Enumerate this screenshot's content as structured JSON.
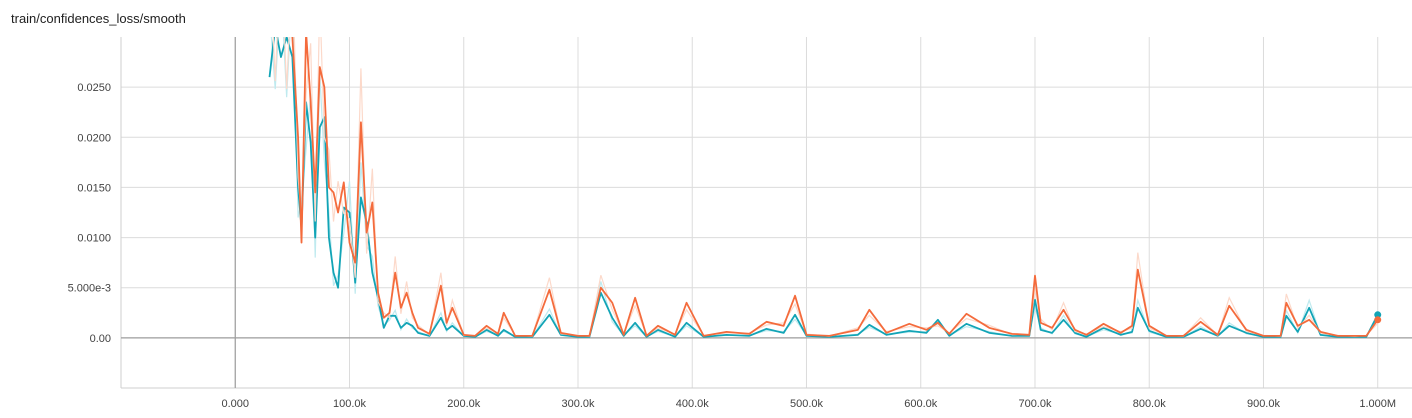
{
  "chart_data": {
    "type": "line",
    "title": "train/confidences_loss/smooth",
    "xlabel": "",
    "ylabel": "",
    "xlim": [
      -100000,
      1030000
    ],
    "ylim": [
      -0.005,
      0.03
    ],
    "x_ticks": [
      0,
      100000,
      200000,
      300000,
      400000,
      500000,
      600000,
      700000,
      800000,
      900000,
      1000000
    ],
    "x_tick_labels": [
      "0.000",
      "100.0k",
      "200.0k",
      "300.0k",
      "400.0k",
      "500.0k",
      "600.0k",
      "700.0k",
      "800.0k",
      "900.0k",
      "1.000M"
    ],
    "y_ticks": [
      0,
      0.005,
      0.01,
      0.015,
      0.02,
      0.025
    ],
    "y_tick_labels": [
      "0.00",
      "5.000e-3",
      "0.0100",
      "0.0150",
      "0.0200",
      "0.0250"
    ],
    "grid": true,
    "series": [
      {
        "color": "#12a4b6",
        "raw_color": "#bfeaef",
        "x": [
          30000,
          35000,
          40000,
          45000,
          50000,
          55000,
          58000,
          62000,
          66000,
          70000,
          74000,
          78000,
          82000,
          86000,
          90000,
          95000,
          100000,
          105000,
          110000,
          115000,
          120000,
          125000,
          130000,
          135000,
          140000,
          145000,
          150000,
          155000,
          160000,
          170000,
          180000,
          185000,
          190000,
          200000,
          210000,
          220000,
          230000,
          235000,
          245000,
          260000,
          275000,
          285000,
          300000,
          310000,
          320000,
          330000,
          340000,
          350000,
          360000,
          370000,
          385000,
          395000,
          410000,
          430000,
          450000,
          465000,
          480000,
          490000,
          500000,
          520000,
          545000,
          555000,
          570000,
          590000,
          605000,
          615000,
          625000,
          640000,
          660000,
          680000,
          695000,
          700000,
          705000,
          715000,
          725000,
          735000,
          745000,
          760000,
          775000,
          785000,
          790000,
          800000,
          815000,
          830000,
          845000,
          860000,
          870000,
          885000,
          900000,
          915000,
          920000,
          930000,
          940000,
          950000,
          965000,
          980000,
          990000,
          1000000
        ],
        "y": [
          0.026,
          0.031,
          0.028,
          0.03,
          0.028,
          0.015,
          0.011,
          0.0235,
          0.0195,
          0.01,
          0.021,
          0.022,
          0.01,
          0.0065,
          0.005,
          0.013,
          0.0125,
          0.0055,
          0.014,
          0.0115,
          0.0065,
          0.004,
          0.001,
          0.0022,
          0.0022,
          0.001,
          0.0015,
          0.0012,
          0.0005,
          0.0002,
          0.002,
          0.0008,
          0.0012,
          0.0002,
          0.0001,
          0.0008,
          0.0002,
          0.0008,
          0.0001,
          0.0001,
          0.0023,
          0.0003,
          0.0001,
          0.0001,
          0.0045,
          0.002,
          0.0002,
          0.0015,
          0.0001,
          0.0008,
          0.0001,
          0.0015,
          0.0001,
          0.0003,
          0.0002,
          0.0009,
          0.0005,
          0.0023,
          0.0002,
          0.0001,
          0.0003,
          0.0013,
          0.0003,
          0.0007,
          0.0005,
          0.0018,
          0.0002,
          0.0014,
          0.0005,
          0.0002,
          0.0002,
          0.0038,
          0.0008,
          0.0005,
          0.0018,
          0.0005,
          0.0001,
          0.001,
          0.0003,
          0.0006,
          0.003,
          0.0007,
          0.0001,
          0.0001,
          0.0009,
          0.0002,
          0.0012,
          0.0005,
          0.0001,
          0.0001,
          0.0022,
          0.0006,
          0.003,
          0.0003,
          0.0001,
          0.0001,
          0.0001,
          0.0023
        ]
      },
      {
        "color": "#f46b3c",
        "raw_color": "#fcd9ca",
        "x": [
          30000,
          35000,
          40000,
          45000,
          50000,
          55000,
          58000,
          62000,
          66000,
          70000,
          74000,
          78000,
          82000,
          86000,
          90000,
          95000,
          100000,
          105000,
          110000,
          115000,
          120000,
          125000,
          130000,
          135000,
          140000,
          145000,
          150000,
          155000,
          160000,
          170000,
          180000,
          185000,
          190000,
          200000,
          210000,
          220000,
          230000,
          235000,
          245000,
          260000,
          275000,
          285000,
          300000,
          310000,
          320000,
          330000,
          340000,
          350000,
          360000,
          370000,
          385000,
          395000,
          410000,
          430000,
          450000,
          465000,
          480000,
          490000,
          500000,
          520000,
          545000,
          555000,
          570000,
          590000,
          605000,
          615000,
          625000,
          640000,
          660000,
          680000,
          695000,
          700000,
          705000,
          715000,
          725000,
          735000,
          745000,
          760000,
          775000,
          785000,
          790000,
          800000,
          815000,
          830000,
          845000,
          860000,
          870000,
          885000,
          900000,
          915000,
          920000,
          930000,
          940000,
          950000,
          965000,
          980000,
          990000,
          1000000
        ],
        "y": [
          0.031,
          0.032,
          0.031,
          0.031,
          0.03,
          0.02,
          0.0095,
          0.0305,
          0.0235,
          0.0145,
          0.027,
          0.025,
          0.015,
          0.0145,
          0.0125,
          0.0155,
          0.0095,
          0.0075,
          0.0215,
          0.0105,
          0.0135,
          0.0045,
          0.002,
          0.0025,
          0.0065,
          0.003,
          0.0045,
          0.0025,
          0.001,
          0.0004,
          0.0052,
          0.0015,
          0.003,
          0.0003,
          0.0002,
          0.0012,
          0.0004,
          0.0025,
          0.0002,
          0.0002,
          0.0048,
          0.0005,
          0.0002,
          0.0002,
          0.005,
          0.0035,
          0.0003,
          0.004,
          0.0002,
          0.0012,
          0.0003,
          0.0035,
          0.0002,
          0.0006,
          0.0004,
          0.0016,
          0.0012,
          0.0042,
          0.0003,
          0.0002,
          0.0008,
          0.0028,
          0.0005,
          0.0014,
          0.0008,
          0.0015,
          0.0004,
          0.0024,
          0.001,
          0.0004,
          0.0003,
          0.0062,
          0.0015,
          0.001,
          0.0028,
          0.0008,
          0.0003,
          0.0014,
          0.0005,
          0.0012,
          0.0068,
          0.0012,
          0.0002,
          0.0002,
          0.0016,
          0.0003,
          0.0032,
          0.0008,
          0.0002,
          0.0002,
          0.0035,
          0.0012,
          0.0018,
          0.0006,
          0.0002,
          0.0002,
          0.0002,
          0.0018
        ]
      }
    ]
  }
}
